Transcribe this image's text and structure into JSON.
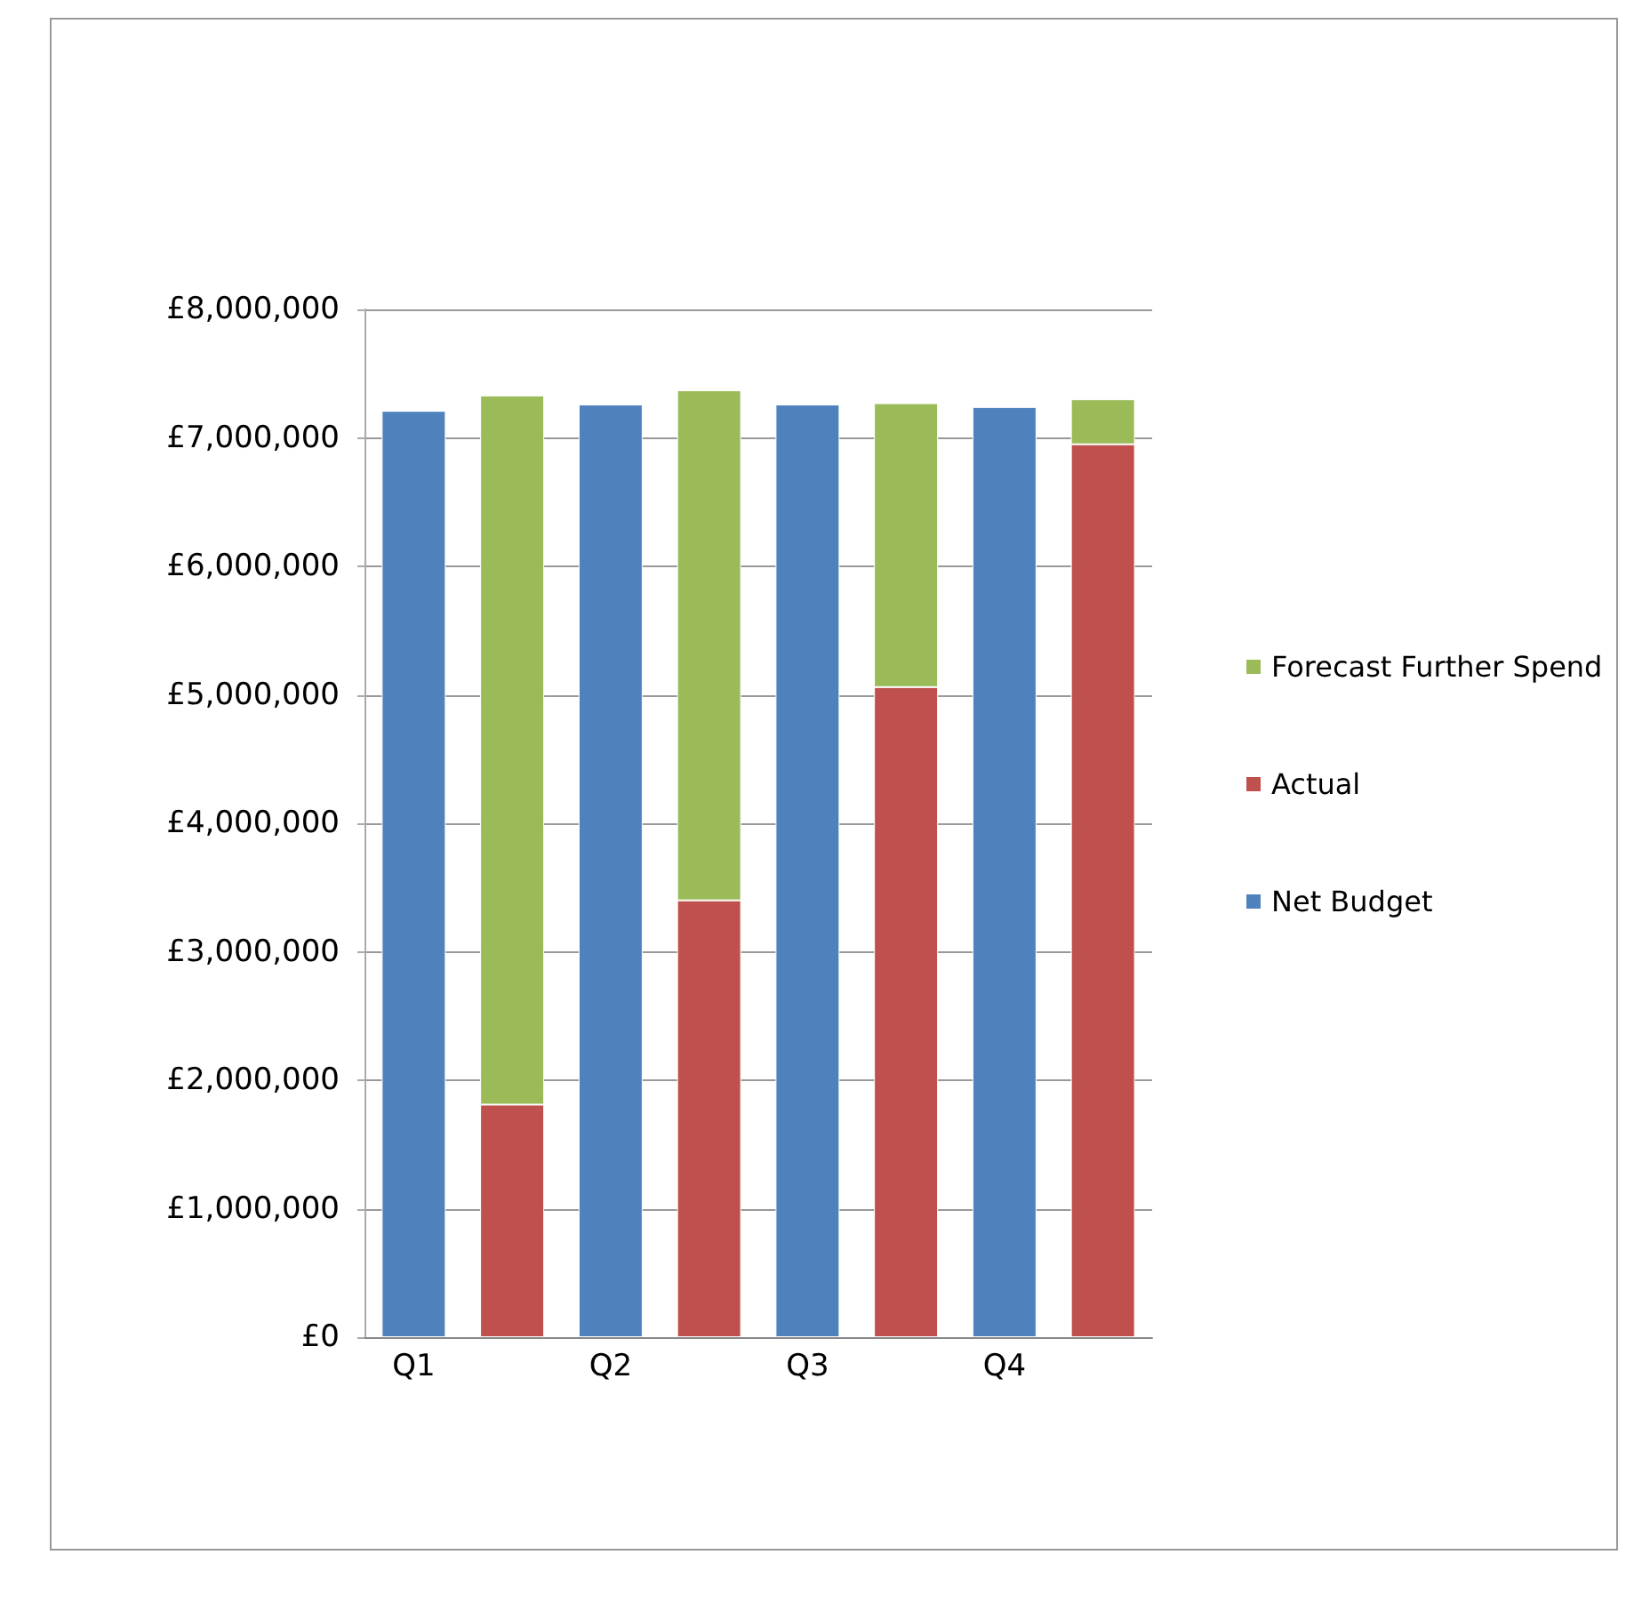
{
  "chart_data": {
    "type": "bar",
    "stacked": true,
    "categories": [
      "Q1",
      null,
      "Q2",
      null,
      "Q3",
      null,
      "Q4",
      null
    ],
    "series": [
      {
        "name": "Net Budget",
        "color": "#4f81bd",
        "values": [
          7210000,
          null,
          7260000,
          null,
          7260000,
          null,
          7240000,
          null
        ]
      },
      {
        "name": "Actual",
        "color": "#c0504d",
        "values": [
          null,
          1810000,
          null,
          3400000,
          null,
          5060000,
          null,
          6950000
        ]
      },
      {
        "name": "Forecast Further Spend",
        "color": "#9bbb59",
        "values": [
          null,
          5520000,
          null,
          3970000,
          null,
          2210000,
          null,
          350000
        ]
      }
    ],
    "ylim": [
      0,
      8000000
    ],
    "yticks": [
      {
        "value": 0,
        "label": "£0"
      },
      {
        "value": 1000000,
        "label": "£1,000,000"
      },
      {
        "value": 2000000,
        "label": "£2,000,000"
      },
      {
        "value": 3000000,
        "label": "£3,000,000"
      },
      {
        "value": 4000000,
        "label": "£4,000,000"
      },
      {
        "value": 5000000,
        "label": "£5,000,000"
      },
      {
        "value": 6000000,
        "label": "£6,000,000"
      },
      {
        "value": 7000000,
        "label": "£7,000,000"
      },
      {
        "value": 8000000,
        "label": "£8,000,000"
      }
    ],
    "grid": "y",
    "legend": "right"
  }
}
